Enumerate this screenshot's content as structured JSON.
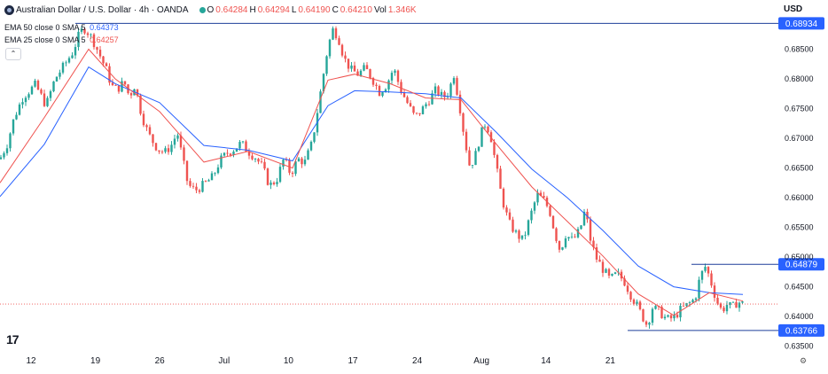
{
  "header": {
    "symbol_title": "Australian Dollar / U.S. Dollar · 4h · OANDA",
    "ohlc": [
      {
        "key": "O",
        "value": "0.64284"
      },
      {
        "key": "H",
        "value": "0.64294"
      },
      {
        "key": "L",
        "value": "0.64190"
      },
      {
        "key": "C",
        "value": "0.64210"
      }
    ],
    "volume_label": "Vol",
    "volume_value": "1.346K",
    "currency": "USD",
    "status_color": "#26a69a"
  },
  "indicators": [
    {
      "label": "EMA 50 close 0 SMA 5",
      "value": "0.64373",
      "color": "#2962ff"
    },
    {
      "label": "EMA 25 close 0 SMA 5",
      "value": "0.64257",
      "color": "#ef5350"
    }
  ],
  "collapse_icon": "chevron-up-icon",
  "settings_icon": "gear-icon",
  "chart_data": {
    "type": "candlestick",
    "interval": "4h",
    "y_range": [
      0.6348,
      0.6903
    ],
    "y_ticks": [
      "0.68500",
      "0.68000",
      "0.67500",
      "0.67000",
      "0.66500",
      "0.66000",
      "0.65500",
      "0.65000",
      "0.64500",
      "0.64000",
      "0.63500"
    ],
    "x_tick_labels": [
      "12",
      "19",
      "26",
      "Jul",
      "10",
      "17",
      "24",
      "Aug",
      "14",
      "21"
    ],
    "close_path": [
      [
        0,
        0.6665
      ],
      [
        8,
        0.669
      ],
      [
        16,
        0.6735
      ],
      [
        26,
        0.677
      ],
      [
        40,
        0.679
      ],
      [
        52,
        0.6755
      ],
      [
        62,
        0.68
      ],
      [
        72,
        0.6822
      ],
      [
        82,
        0.6845
      ],
      [
        90,
        0.6878
      ],
      [
        96,
        0.6885
      ],
      [
        104,
        0.6868
      ],
      [
        112,
        0.6842
      ],
      [
        120,
        0.6815
      ],
      [
        126,
        0.6788
      ],
      [
        132,
        0.6782
      ],
      [
        140,
        0.6795
      ],
      [
        146,
        0.677
      ],
      [
        152,
        0.679
      ],
      [
        158,
        0.675
      ],
      [
        164,
        0.672
      ],
      [
        170,
        0.67
      ],
      [
        178,
        0.6682
      ],
      [
        186,
        0.6676
      ],
      [
        194,
        0.669
      ],
      [
        200,
        0.671
      ],
      [
        206,
        0.6665
      ],
      [
        212,
        0.6622
      ],
      [
        220,
        0.6612
      ],
      [
        230,
        0.6622
      ],
      [
        240,
        0.6635
      ],
      [
        248,
        0.6662
      ],
      [
        256,
        0.6675
      ],
      [
        264,
        0.6682
      ],
      [
        272,
        0.6692
      ],
      [
        280,
        0.6678
      ],
      [
        288,
        0.6668
      ],
      [
        296,
        0.6652
      ],
      [
        304,
        0.662
      ],
      [
        312,
        0.663
      ],
      [
        320,
        0.6665
      ],
      [
        328,
        0.664
      ],
      [
        336,
        0.6665
      ],
      [
        344,
        0.666
      ],
      [
        352,
        0.6692
      ],
      [
        358,
        0.6745
      ],
      [
        364,
        0.68
      ],
      [
        370,
        0.6855
      ],
      [
        376,
        0.6885
      ],
      [
        382,
        0.6868
      ],
      [
        388,
        0.6835
      ],
      [
        396,
        0.6815
      ],
      [
        404,
        0.6808
      ],
      [
        412,
        0.6818
      ],
      [
        420,
        0.68
      ],
      [
        428,
        0.6778
      ],
      [
        436,
        0.679
      ],
      [
        444,
        0.6818
      ],
      [
        452,
        0.6782
      ],
      [
        460,
        0.6758
      ],
      [
        468,
        0.6735
      ],
      [
        476,
        0.6748
      ],
      [
        484,
        0.6765
      ],
      [
        492,
        0.6782
      ],
      [
        500,
        0.6768
      ],
      [
        506,
        0.6778
      ],
      [
        512,
        0.6808
      ],
      [
        518,
        0.676
      ],
      [
        524,
        0.67
      ],
      [
        530,
        0.6652
      ],
      [
        536,
        0.667
      ],
      [
        542,
        0.6705
      ],
      [
        548,
        0.6728
      ],
      [
        554,
        0.67
      ],
      [
        560,
        0.665
      ],
      [
        566,
        0.66
      ],
      [
        574,
        0.6558
      ],
      [
        582,
        0.654
      ],
      [
        590,
        0.6528
      ],
      [
        598,
        0.6568
      ],
      [
        606,
        0.6605
      ],
      [
        614,
        0.6595
      ],
      [
        620,
        0.6578
      ],
      [
        626,
        0.654
      ],
      [
        632,
        0.651
      ],
      [
        638,
        0.6538
      ],
      [
        646,
        0.6528
      ],
      [
        654,
        0.6545
      ],
      [
        660,
        0.658
      ],
      [
        666,
        0.653
      ],
      [
        672,
        0.65
      ],
      [
        680,
        0.648
      ],
      [
        688,
        0.6462
      ],
      [
        696,
        0.6472
      ],
      [
        704,
        0.646
      ],
      [
        712,
        0.6435
      ],
      [
        718,
        0.642
      ],
      [
        724,
        0.6402
      ],
      [
        730,
        0.6385
      ],
      [
        736,
        0.6415
      ],
      [
        744,
        0.6408
      ],
      [
        752,
        0.6395
      ],
      [
        760,
        0.6398
      ],
      [
        768,
        0.6412
      ],
      [
        776,
        0.642
      ],
      [
        784,
        0.643
      ],
      [
        790,
        0.6468
      ],
      [
        796,
        0.6485
      ],
      [
        802,
        0.6458
      ],
      [
        808,
        0.6428
      ],
      [
        814,
        0.641
      ],
      [
        820,
        0.642
      ],
      [
        826,
        0.6415
      ],
      [
        832,
        0.6425
      ],
      [
        838,
        0.6421
      ]
    ],
    "ema50_path": [
      [
        0,
        0.6602
      ],
      [
        50,
        0.669
      ],
      [
        100,
        0.682
      ],
      [
        130,
        0.6792
      ],
      [
        180,
        0.676
      ],
      [
        230,
        0.6688
      ],
      [
        280,
        0.668
      ],
      [
        330,
        0.6662
      ],
      [
        370,
        0.6755
      ],
      [
        400,
        0.678
      ],
      [
        440,
        0.6778
      ],
      [
        480,
        0.6775
      ],
      [
        520,
        0.6768
      ],
      [
        560,
        0.671
      ],
      [
        600,
        0.6648
      ],
      [
        640,
        0.66
      ],
      [
        680,
        0.6545
      ],
      [
        720,
        0.6485
      ],
      [
        760,
        0.645
      ],
      [
        800,
        0.644
      ],
      [
        838,
        0.6437
      ]
    ],
    "ema25_path": [
      [
        0,
        0.6625
      ],
      [
        50,
        0.6735
      ],
      [
        100,
        0.685
      ],
      [
        130,
        0.68
      ],
      [
        180,
        0.6745
      ],
      [
        230,
        0.666
      ],
      [
        280,
        0.6678
      ],
      [
        330,
        0.665
      ],
      [
        370,
        0.6798
      ],
      [
        400,
        0.6808
      ],
      [
        440,
        0.6792
      ],
      [
        480,
        0.6768
      ],
      [
        520,
        0.6765
      ],
      [
        560,
        0.669
      ],
      [
        600,
        0.6618
      ],
      [
        640,
        0.656
      ],
      [
        680,
        0.6502
      ],
      [
        720,
        0.6438
      ],
      [
        760,
        0.6402
      ],
      [
        800,
        0.644
      ],
      [
        838,
        0.6426
      ]
    ],
    "levels": [
      {
        "value": 0.68934,
        "label": "0.68934",
        "line_start_x": 85,
        "color": "#1e3f9a"
      },
      {
        "value": 0.64879,
        "label": "0.64879",
        "line_start_x": 780,
        "color": "#1e3f9a"
      },
      {
        "value": 0.63766,
        "label": "0.63766",
        "line_start_x": 708,
        "color": "#1e3f9a"
      }
    ],
    "current_price": 0.6421,
    "candle_colors": {
      "up": "#26a69a",
      "down": "#ef5350"
    }
  }
}
